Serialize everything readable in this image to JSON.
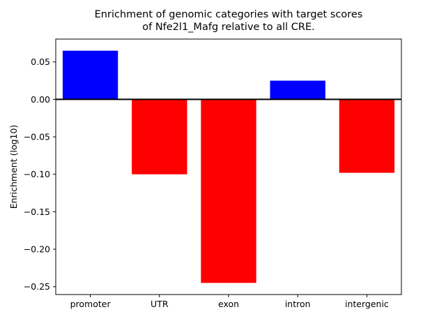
{
  "chart_data": {
    "type": "bar",
    "title": "Enrichment of genomic categories with target scores\nof Nfe2l1_Mafg relative to all CRE.",
    "title_lines": [
      "Enrichment of genomic categories with target scores",
      "of Nfe2l1_Mafg relative to all CRE."
    ],
    "categories": [
      "promoter",
      "UTR",
      "exon",
      "intron",
      "intergenic"
    ],
    "values": [
      0.065,
      -0.1,
      -0.245,
      0.025,
      -0.098
    ],
    "bar_colors": [
      "#0000ff",
      "#ff0000",
      "#ff0000",
      "#0000ff",
      "#ff0000"
    ],
    "positive_color": "#0000ff",
    "negative_color": "#ff0000",
    "xlabel": "",
    "ylabel": "Enrichment (log10)",
    "ylim": [
      -0.2605,
      0.0805
    ],
    "yticks": [
      0.05,
      0.0,
      -0.05,
      -0.1,
      -0.15,
      -0.2,
      -0.25
    ],
    "zero_line": true,
    "grid": false,
    "axis_color": "#000000",
    "background_color": "#ffffff"
  }
}
